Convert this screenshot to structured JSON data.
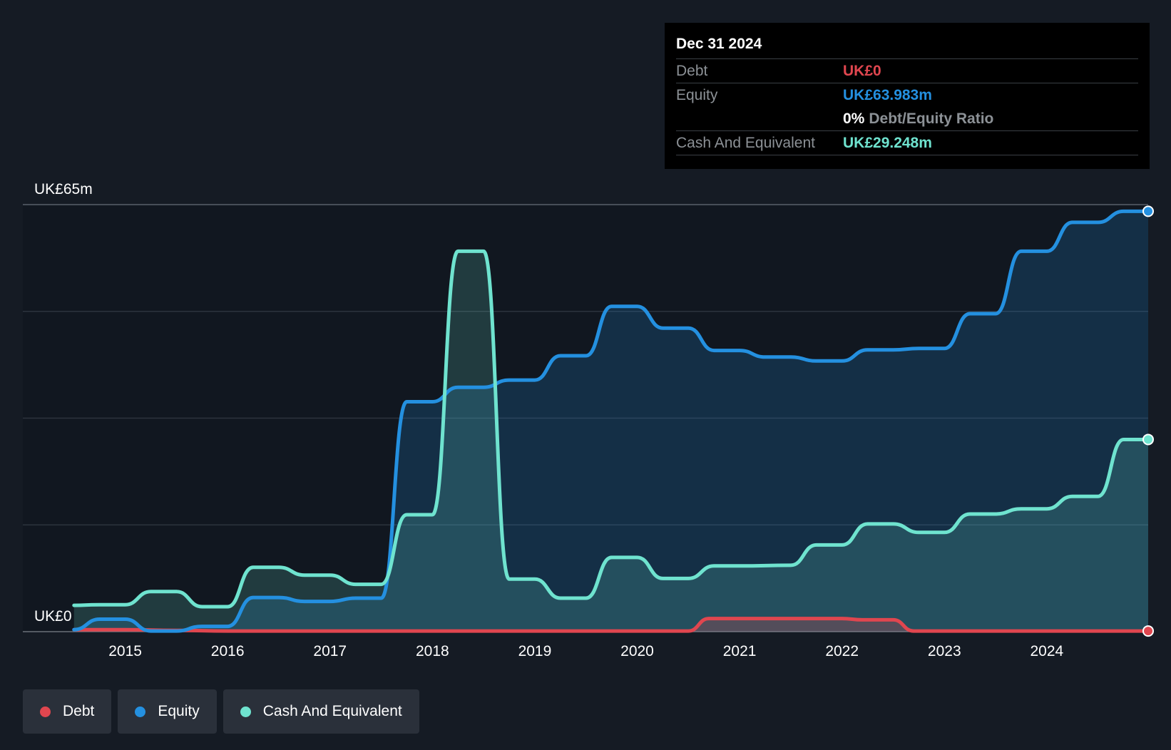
{
  "colors": {
    "background": "#151b24",
    "debt": "#e0464f",
    "equity": "#2490e0",
    "cash": "#6fe3cf",
    "grid": "#2c333d",
    "text": "#ffffff",
    "muted": "#8c9196"
  },
  "tooltip": {
    "date": "Dec 31 2024",
    "debt_label": "Debt",
    "debt_value": "UK£0",
    "equity_label": "Equity",
    "equity_value": "UK£63.983m",
    "ratio_value": "0%",
    "ratio_label": "Debt/Equity Ratio",
    "cash_label": "Cash And Equivalent",
    "cash_value": "UK£29.248m"
  },
  "legend": {
    "debt": "Debt",
    "equity": "Equity",
    "cash": "Cash And Equivalent"
  },
  "chart_data": {
    "type": "area",
    "title": "",
    "xlabel": "",
    "ylabel": "",
    "y_top_label": "UK£65m",
    "y_bottom_label": "UK£0",
    "ylim": [
      0,
      65
    ],
    "xlim": [
      2014.0,
      2024.99
    ],
    "x_ticks": [
      2015,
      2016,
      2017,
      2018,
      2019,
      2020,
      2021,
      2022,
      2023,
      2024
    ],
    "grid": true,
    "legend_position": "bottom-left",
    "series": [
      {
        "name": "Debt",
        "color": "#e0464f",
        "points": [
          [
            2014.5,
            0.3
          ],
          [
            2015.0,
            0.3
          ],
          [
            2015.5,
            0.2
          ],
          [
            2016.0,
            0.1
          ],
          [
            2017.0,
            0.1
          ],
          [
            2018.0,
            0.1
          ],
          [
            2019.0,
            0.1
          ],
          [
            2020.0,
            0.1
          ],
          [
            2020.5,
            0.1
          ],
          [
            2020.7,
            2.0
          ],
          [
            2021.0,
            2.0
          ],
          [
            2021.5,
            2.0
          ],
          [
            2022.0,
            2.0
          ],
          [
            2022.2,
            1.8
          ],
          [
            2022.5,
            1.8
          ],
          [
            2022.7,
            0.1
          ],
          [
            2023.0,
            0.1
          ],
          [
            2024.0,
            0.1
          ],
          [
            2024.99,
            0.1
          ]
        ]
      },
      {
        "name": "Equity",
        "color": "#2490e0",
        "points": [
          [
            2014.5,
            0.3
          ],
          [
            2014.75,
            1.9
          ],
          [
            2015.0,
            1.9
          ],
          [
            2015.25,
            0.1
          ],
          [
            2015.5,
            0.1
          ],
          [
            2015.75,
            0.8
          ],
          [
            2016.0,
            0.8
          ],
          [
            2016.25,
            5.2
          ],
          [
            2016.5,
            5.2
          ],
          [
            2016.75,
            4.6
          ],
          [
            2017.0,
            4.6
          ],
          [
            2017.25,
            5.1
          ],
          [
            2017.5,
            5.1
          ],
          [
            2017.75,
            35.0
          ],
          [
            2018.0,
            35.0
          ],
          [
            2018.25,
            37.2
          ],
          [
            2018.5,
            37.2
          ],
          [
            2018.75,
            38.3
          ],
          [
            2019.0,
            38.3
          ],
          [
            2019.25,
            42.0
          ],
          [
            2019.5,
            42.0
          ],
          [
            2019.75,
            49.5
          ],
          [
            2020.0,
            49.5
          ],
          [
            2020.25,
            46.2
          ],
          [
            2020.5,
            46.2
          ],
          [
            2020.75,
            42.8
          ],
          [
            2021.0,
            42.8
          ],
          [
            2021.25,
            41.8
          ],
          [
            2021.5,
            41.8
          ],
          [
            2021.75,
            41.2
          ],
          [
            2022.0,
            41.2
          ],
          [
            2022.25,
            42.9
          ],
          [
            2022.5,
            42.9
          ],
          [
            2022.75,
            43.1
          ],
          [
            2023.0,
            43.1
          ],
          [
            2023.25,
            48.4
          ],
          [
            2023.5,
            48.4
          ],
          [
            2023.75,
            57.9
          ],
          [
            2024.0,
            57.9
          ],
          [
            2024.25,
            62.3
          ],
          [
            2024.5,
            62.3
          ],
          [
            2024.75,
            63.98
          ],
          [
            2024.99,
            63.98
          ]
        ]
      },
      {
        "name": "Cash And Equivalent",
        "color": "#6fe3cf",
        "points": [
          [
            2014.5,
            4.0
          ],
          [
            2014.75,
            4.1
          ],
          [
            2015.0,
            4.1
          ],
          [
            2015.25,
            6.1
          ],
          [
            2015.5,
            6.1
          ],
          [
            2015.75,
            3.8
          ],
          [
            2016.0,
            3.8
          ],
          [
            2016.25,
            9.8
          ],
          [
            2016.5,
            9.8
          ],
          [
            2016.75,
            8.6
          ],
          [
            2017.0,
            8.6
          ],
          [
            2017.25,
            7.2
          ],
          [
            2017.5,
            7.2
          ],
          [
            2017.75,
            17.8
          ],
          [
            2018.0,
            17.8
          ],
          [
            2018.25,
            57.9
          ],
          [
            2018.5,
            57.9
          ],
          [
            2018.75,
            8.0
          ],
          [
            2019.0,
            8.0
          ],
          [
            2019.25,
            5.1
          ],
          [
            2019.5,
            5.1
          ],
          [
            2019.75,
            11.3
          ],
          [
            2020.0,
            11.3
          ],
          [
            2020.25,
            8.1
          ],
          [
            2020.5,
            8.1
          ],
          [
            2020.75,
            10.0
          ],
          [
            2021.0,
            10.0
          ],
          [
            2021.5,
            10.1
          ],
          [
            2021.75,
            13.2
          ],
          [
            2022.0,
            13.2
          ],
          [
            2022.25,
            16.4
          ],
          [
            2022.5,
            16.4
          ],
          [
            2022.75,
            15.1
          ],
          [
            2023.0,
            15.1
          ],
          [
            2023.25,
            17.9
          ],
          [
            2023.5,
            17.9
          ],
          [
            2023.75,
            18.7
          ],
          [
            2024.0,
            18.7
          ],
          [
            2024.25,
            20.6
          ],
          [
            2024.5,
            20.6
          ],
          [
            2024.75,
            29.25
          ],
          [
            2024.99,
            29.25
          ]
        ]
      }
    ]
  }
}
